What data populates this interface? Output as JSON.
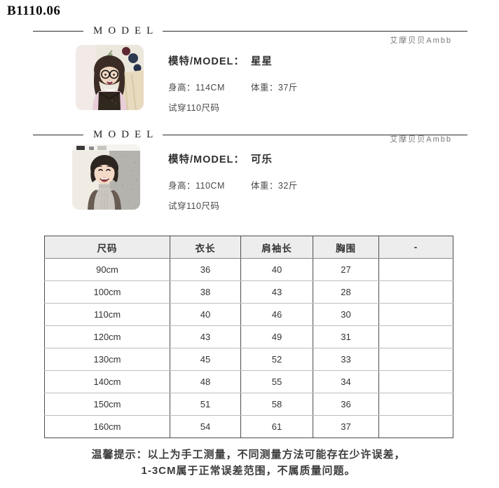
{
  "page": {
    "title": "B1110.06"
  },
  "model_sections": [
    {
      "header_word": "MODEL",
      "brand": "艾摩贝贝Ambb",
      "name_label": "模特/MODEL：",
      "name": "星星",
      "height": "身高：114CM",
      "weight": "体重：37斤",
      "fit": "试穿110尺码"
    },
    {
      "header_word": "MODEL",
      "brand": "艾摩贝贝Ambb",
      "name_label": "模特/MODEL：",
      "name": "可乐",
      "height": "身高：110CM",
      "weight": "体重：32斤",
      "fit": "试穿110尺码"
    }
  ],
  "size_table": {
    "headers": [
      "尺码",
      "衣长",
      "肩袖长",
      "胸围",
      "-"
    ],
    "rows": [
      [
        "90cm",
        "36",
        "40",
        "27",
        ""
      ],
      [
        "100cm",
        "38",
        "43",
        "28",
        ""
      ],
      [
        "110cm",
        "40",
        "46",
        "30",
        ""
      ],
      [
        "120cm",
        "43",
        "49",
        "31",
        ""
      ],
      [
        "130cm",
        "45",
        "52",
        "33",
        ""
      ],
      [
        "140cm",
        "48",
        "55",
        "34",
        ""
      ],
      [
        "150cm",
        "51",
        "58",
        "36",
        ""
      ],
      [
        "160cm",
        "54",
        "61",
        "37",
        ""
      ]
    ]
  },
  "notice": {
    "line1": "温馨提示：以上为手工测量，不同测量方法可能存在少许误差，",
    "line2": "1-3CM属于正常误差范围，不属质量问题。"
  },
  "colors": {
    "rule": "#2b2b2b",
    "brand_text": "#757575",
    "table_border_dark": "#4d4d4d",
    "table_border_light": "#bdbdbd",
    "table_header_bg": "#ededed",
    "notice_text": "#3d3d3d"
  }
}
